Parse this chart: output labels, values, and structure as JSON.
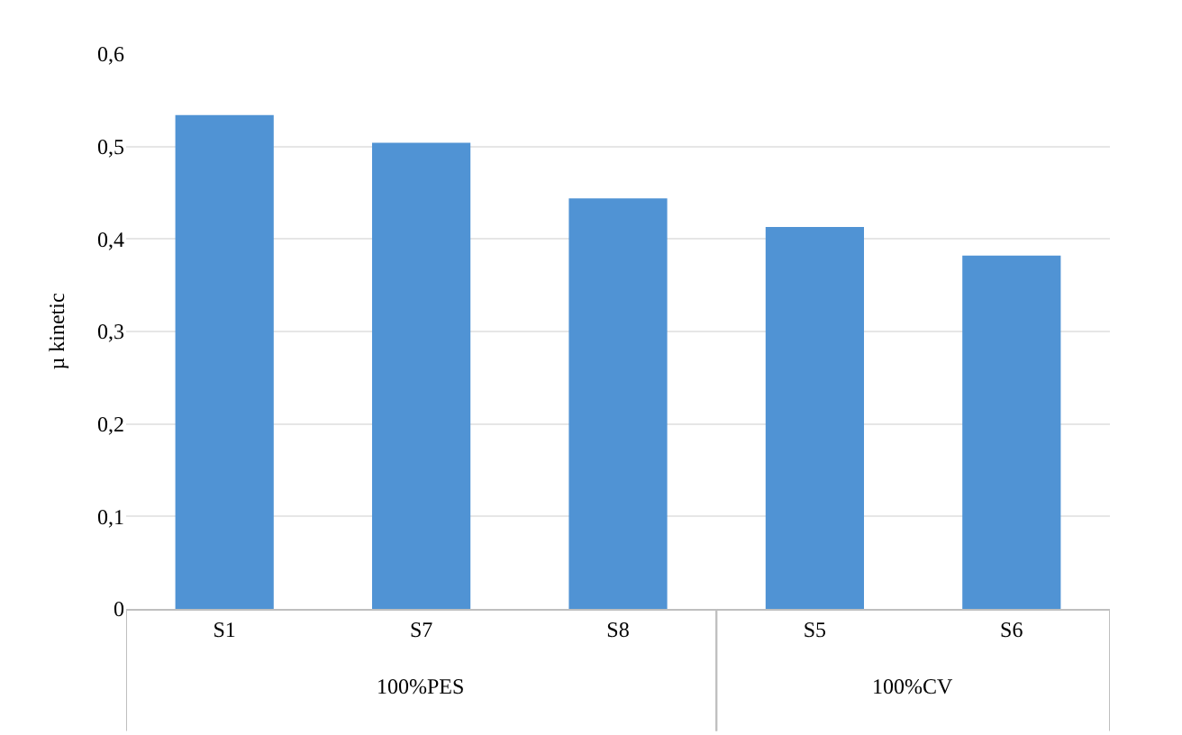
{
  "chart_data": {
    "type": "bar",
    "ylabel": "µ kinetic",
    "categories": [
      "S1",
      "S7",
      "S8",
      "S5",
      "S6"
    ],
    "values": [
      0.534,
      0.504,
      0.444,
      0.413,
      0.382
    ],
    "color": "#5093d4",
    "ylim": [
      0,
      0.6
    ],
    "yticks": [
      {
        "value": 0,
        "label": "0"
      },
      {
        "value": 0.1,
        "label": "0,1"
      },
      {
        "value": 0.2,
        "label": "0,2"
      },
      {
        "value": 0.3,
        "label": "0,3"
      },
      {
        "value": 0.4,
        "label": "0,4"
      },
      {
        "value": 0.5,
        "label": "0,5"
      },
      {
        "value": 0.6,
        "label": "0,6"
      }
    ],
    "grid": "y",
    "legend": false,
    "annotations": [
      "100%PES",
      "100%CV"
    ]
  }
}
